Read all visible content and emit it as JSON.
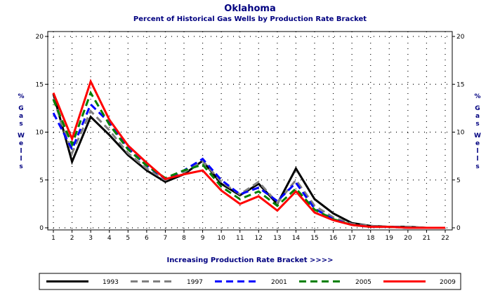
{
  "chart_data": {
    "type": "line",
    "title": "Oklahoma",
    "subtitle": "Percent of Historical Gas Wells by Production Rate Bracket",
    "xlabel": "Increasing Production Rate Bracket >>>>",
    "ylabel": "% Gas Wells",
    "x": [
      1,
      2,
      3,
      4,
      5,
      6,
      7,
      8,
      9,
      10,
      11,
      12,
      13,
      14,
      15,
      16,
      17,
      18,
      19,
      20,
      21,
      22
    ],
    "ylim": [
      0,
      20
    ],
    "yticks": [
      0,
      5,
      10,
      15,
      20
    ],
    "grid": true,
    "legend_position": "bottom",
    "series": [
      {
        "name": "1993",
        "color": "#000000",
        "dash": "solid",
        "values": [
          14.0,
          6.9,
          11.6,
          9.7,
          7.6,
          6.0,
          4.8,
          5.6,
          7.0,
          4.6,
          3.4,
          4.6,
          2.5,
          6.2,
          3.0,
          1.5,
          0.5,
          0.2,
          0.1,
          0.1,
          0.0,
          0.0
        ]
      },
      {
        "name": "1997",
        "color": "#808080",
        "dash": "dashed",
        "values": [
          13.5,
          7.8,
          12.2,
          10.2,
          7.8,
          6.2,
          5.0,
          5.8,
          7.0,
          4.8,
          3.5,
          4.8,
          2.6,
          5.0,
          2.3,
          1.1,
          0.4,
          0.2,
          0.1,
          0.1,
          0.0,
          0.0
        ]
      },
      {
        "name": "2001",
        "color": "#0000ff",
        "dash": "dashed",
        "values": [
          12.0,
          8.2,
          12.9,
          11.0,
          8.3,
          6.5,
          5.1,
          6.0,
          7.2,
          5.0,
          3.5,
          4.2,
          2.8,
          4.7,
          2.0,
          0.9,
          0.3,
          0.1,
          0.1,
          0.0,
          0.0,
          0.0
        ]
      },
      {
        "name": "2005",
        "color": "#008000",
        "dash": "dashed",
        "values": [
          13.4,
          8.7,
          14.1,
          10.8,
          8.2,
          6.5,
          5.2,
          6.0,
          6.6,
          4.3,
          3.0,
          3.8,
          2.3,
          4.1,
          1.9,
          0.9,
          0.3,
          0.1,
          0.1,
          0.0,
          0.0,
          0.0
        ]
      },
      {
        "name": "2009",
        "color": "#ff0000",
        "dash": "solid",
        "values": [
          14.1,
          9.3,
          15.3,
          11.3,
          8.6,
          6.8,
          5.1,
          5.6,
          6.0,
          3.9,
          2.5,
          3.3,
          1.8,
          3.8,
          1.6,
          0.8,
          0.3,
          0.1,
          0.1,
          0.0,
          0.0,
          0.0
        ]
      }
    ]
  }
}
